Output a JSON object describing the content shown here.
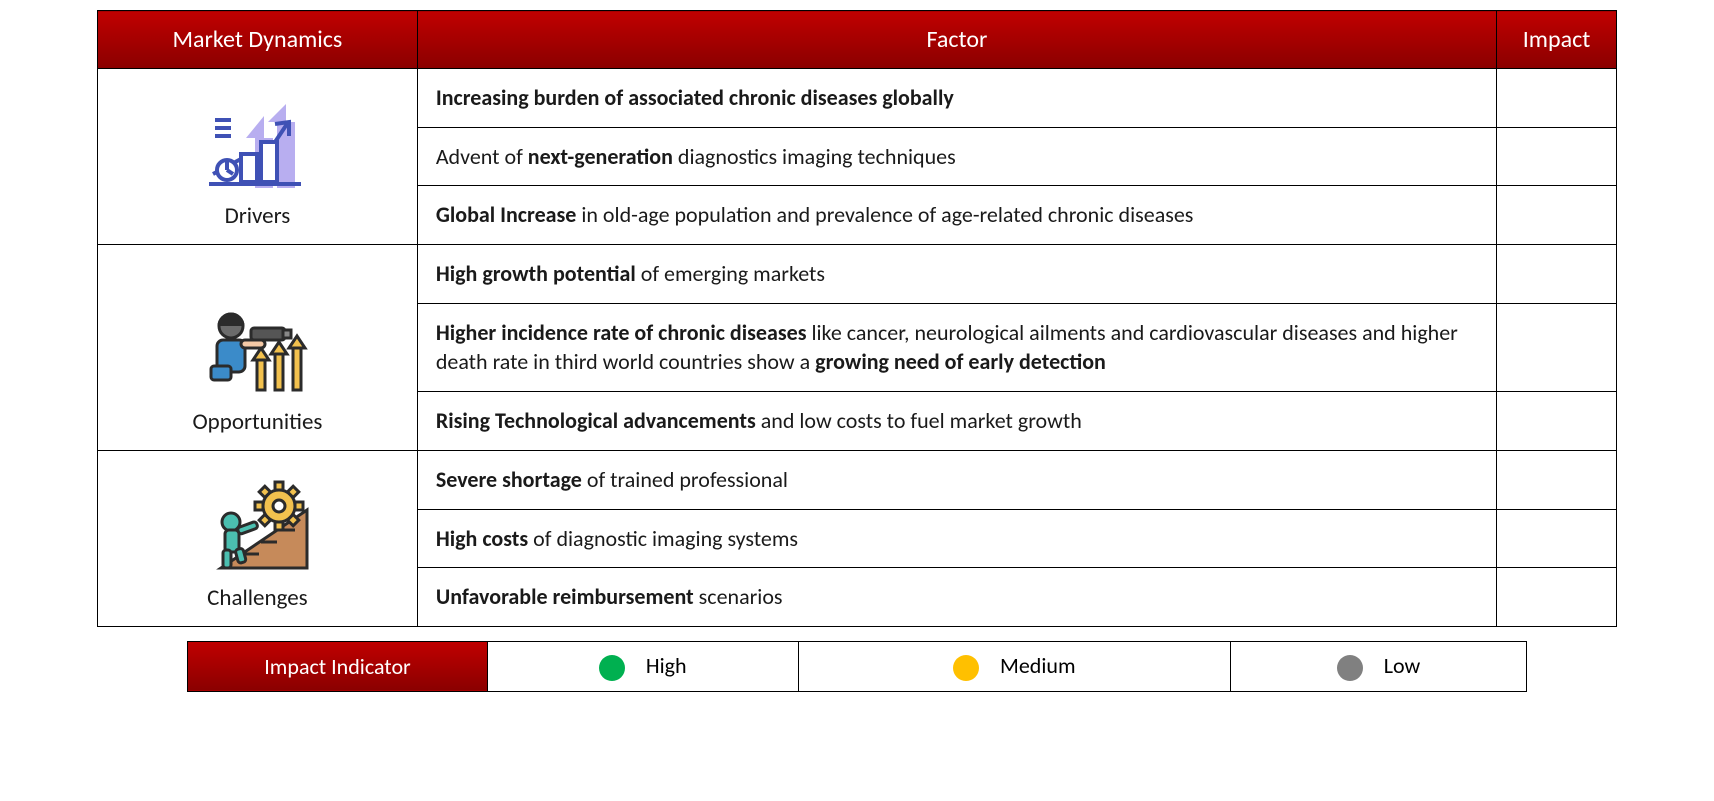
{
  "colors": {
    "header_bg_top": "#c00000",
    "header_bg_bottom": "#8a0000",
    "header_text": "#ffffff",
    "border": "#000000",
    "cell_bg": "#ffffff",
    "text": "#1a1a1a",
    "high": "#00b050",
    "medium": "#ffc000",
    "low": "#808080",
    "icon_blue": "#3f51b5",
    "icon_lavender": "#b8aef0",
    "icon_teal": "#4bbfb0",
    "icon_gold": "#f2c14e",
    "icon_brown": "#c68a5a",
    "icon_dark": "#2b2b2b"
  },
  "header": {
    "dynamics": "Market Dynamics",
    "factor": "Factor",
    "impact": "Impact"
  },
  "sections": [
    {
      "label": "Drivers",
      "icon": "growth-chart-icon",
      "rows": [
        {
          "html": "<b>Increasing burden of associated chronic diseases globally</b>"
        },
        {
          "html": "Advent of <b>next-generation</b> diagnostics imaging techniques"
        },
        {
          "html": "<b>Global Increase</b> in old-age population and prevalence of age-related chronic diseases"
        }
      ]
    },
    {
      "label": "Opportunities",
      "icon": "opportunity-icon",
      "rows": [
        {
          "html": "<b>High growth potential</b> of emerging markets"
        },
        {
          "html": "<b>Higher incidence rate of chronic diseases</b> like cancer, neurological ailments and cardiovascular diseases and higher death rate in third world countries show a <b>growing need of early detection</b>"
        },
        {
          "html": "<b>Rising Technological advancements</b> and low costs to fuel market growth"
        }
      ]
    },
    {
      "label": "Challenges",
      "icon": "challenge-icon",
      "rows": [
        {
          "html": "<b>Severe shortage</b> of trained professional"
        },
        {
          "html": "<b>High costs</b> of diagnostic imaging systems"
        },
        {
          "html": "<b>Unfavorable reimbursement</b> scenarios"
        }
      ]
    }
  ],
  "legend": {
    "label": "Impact Indicator",
    "items": [
      {
        "name": "High",
        "color_key": "high"
      },
      {
        "name": "Medium",
        "color_key": "medium"
      },
      {
        "name": "Low",
        "color_key": "low"
      }
    ]
  }
}
